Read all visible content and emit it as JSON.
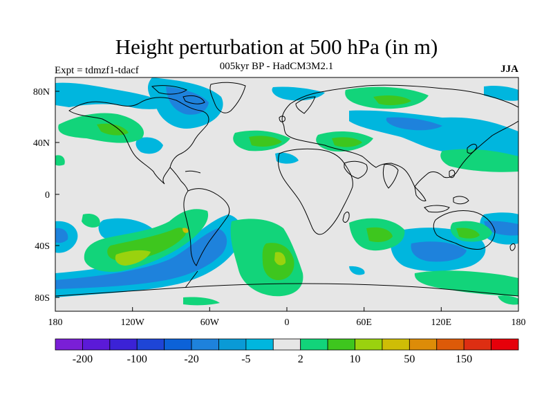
{
  "title": "Height perturbation at 500 hPa (in m)",
  "subtitle": "005kyr BP - HadCM3M2.1",
  "expt_label": "Expt = tdmzf1-tdacf",
  "season": "JJA",
  "lat_labels": [
    "80N",
    "40N",
    "0",
    "40S",
    "80S"
  ],
  "lon_labels": [
    "180",
    "120W",
    "60W",
    "0",
    "60E",
    "120E",
    "180"
  ],
  "colorbar": {
    "colors": [
      "#7a1fd6",
      "#5b1ad8",
      "#3b22d6",
      "#1e45d6",
      "#0c62d8",
      "#1e82dc",
      "#0a9ad6",
      "#00b6de",
      "#e6e6e6",
      "#12d47a",
      "#3ec61e",
      "#9ad20e",
      "#cfbd06",
      "#dd8c08",
      "#dd5a08",
      "#dd2e12",
      "#e6000a"
    ],
    "labels": [
      {
        "text": "-200",
        "boundary": 1
      },
      {
        "text": "-100",
        "boundary": 3
      },
      {
        "text": "-20",
        "boundary": 5
      },
      {
        "text": "-5",
        "boundary": 7
      },
      {
        "text": "2",
        "boundary": 9
      },
      {
        "text": "10",
        "boundary": 11
      },
      {
        "text": "50",
        "boundary": 13
      },
      {
        "text": "150",
        "boundary": 15
      }
    ]
  },
  "map_colors": {
    "background": "#e6e6e6",
    "neg_light": "#00b6de",
    "neg_mid": "#1e82dc",
    "pos_light": "#12d47a",
    "pos_mid": "#3ec61e",
    "pos_high": "#9ad20e",
    "pos_peak": "#cfbd06",
    "coast": "#000000"
  }
}
